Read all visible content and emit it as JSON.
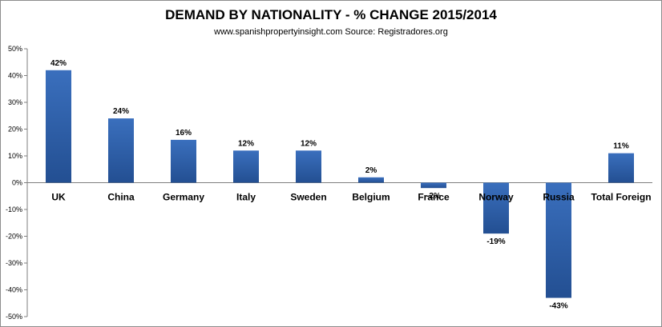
{
  "chart_data": {
    "type": "bar",
    "title": "DEMAND BY NATIONALITY - % CHANGE 2015/2014",
    "subtitle": "www.spanishpropertyinsight.com Source: Registradores.org",
    "categories": [
      "UK",
      "China",
      "Germany",
      "Italy",
      "Sweden",
      "Belgium",
      "France",
      "Norway",
      "Russia",
      "Total Foreign"
    ],
    "values": [
      42,
      24,
      16,
      12,
      12,
      2,
      -2,
      -19,
      -43,
      11
    ],
    "data_labels": [
      "42%",
      "24%",
      "16%",
      "12%",
      "12%",
      "2%",
      "-2%",
      "-19%",
      "-43%",
      "11%"
    ],
    "y_ticks": [
      "50%",
      "40%",
      "30%",
      "20%",
      "10%",
      "0%",
      "-10%",
      "-20%",
      "-30%",
      "-40%",
      "-50%"
    ],
    "ylim": [
      -50,
      50
    ],
    "grid": false,
    "legend": "none",
    "bar_color": "#3a6fbd",
    "bar_color_dark": "#234f92"
  }
}
